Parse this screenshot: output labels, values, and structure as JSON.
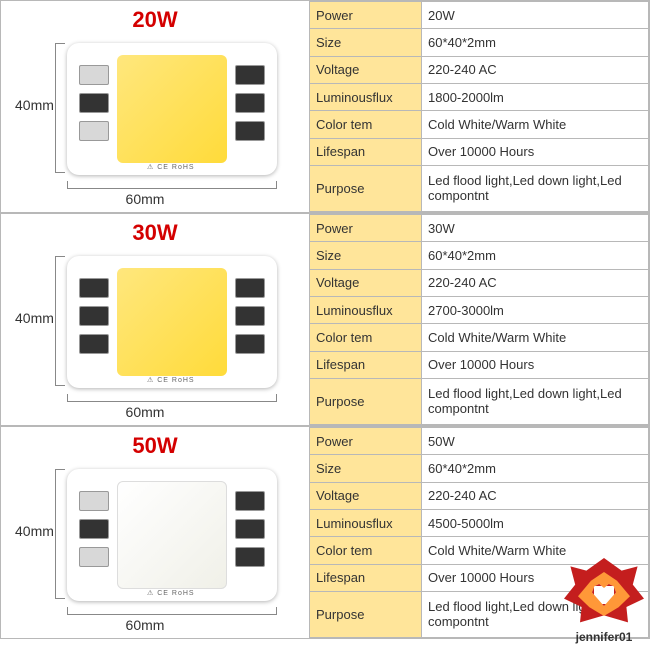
{
  "variants": [
    {
      "title": "20W",
      "height_label": "40mm",
      "width_label": "60mm",
      "led_class": "led-yellow",
      "side_left_variant": "mixed",
      "ce_text": "⚠ CE RoHS",
      "specs": {
        "power": {
          "key": "Power",
          "val": "20W"
        },
        "size": {
          "key": "Size",
          "val": "60*40*2mm"
        },
        "voltage": {
          "key": "Voltage",
          "val": "220-240 AC"
        },
        "flux": {
          "key": "Luminousflux",
          "val": "1800-2000lm"
        },
        "colortemp": {
          "key": "Color tem",
          "val": "Cold White/Warm White"
        },
        "lifespan": {
          "key": "Lifespan",
          "val": "Over 10000 Hours"
        },
        "purpose": {
          "key": "Purpose",
          "val": "Led flood light,Led down light,Led compontnt"
        }
      }
    },
    {
      "title": "30W",
      "height_label": "40mm",
      "width_label": "60mm",
      "led_class": "led-yellow",
      "side_left_variant": "dark",
      "ce_text": "⚠ CE RoHS",
      "specs": {
        "power": {
          "key": "Power",
          "val": "30W"
        },
        "size": {
          "key": "Size",
          "val": "60*40*2mm"
        },
        "voltage": {
          "key": "Voltage",
          "val": "220-240 AC"
        },
        "flux": {
          "key": "Luminousflux",
          "val": "2700-3000lm"
        },
        "colortemp": {
          "key": "Color tem",
          "val": "Cold White/Warm White"
        },
        "lifespan": {
          "key": "Lifespan",
          "val": "Over 10000 Hours"
        },
        "purpose": {
          "key": "Purpose",
          "val": "Led flood light,Led down light,Led compontnt"
        }
      }
    },
    {
      "title": "50W",
      "height_label": "40mm",
      "width_label": "60mm",
      "led_class": "led-white",
      "side_left_variant": "mixed",
      "ce_text": "⚠ CE RoHS",
      "specs": {
        "power": {
          "key": "Power",
          "val": "50W"
        },
        "size": {
          "key": "Size",
          "val": "60*40*2mm"
        },
        "voltage": {
          "key": "Voltage",
          "val": "220-240 AC"
        },
        "flux": {
          "key": "Luminousflux",
          "val": "4500-5000lm"
        },
        "colortemp": {
          "key": "Color tem",
          "val": "Cold White/Warm White"
        },
        "lifespan": {
          "key": "Lifespan",
          "val": "Over 10000 Hours"
        },
        "purpose": {
          "key": "Purpose",
          "val": "Led flood light,Led down light,Led compontnt"
        }
      }
    }
  ],
  "watermark_text": "jennifer01"
}
